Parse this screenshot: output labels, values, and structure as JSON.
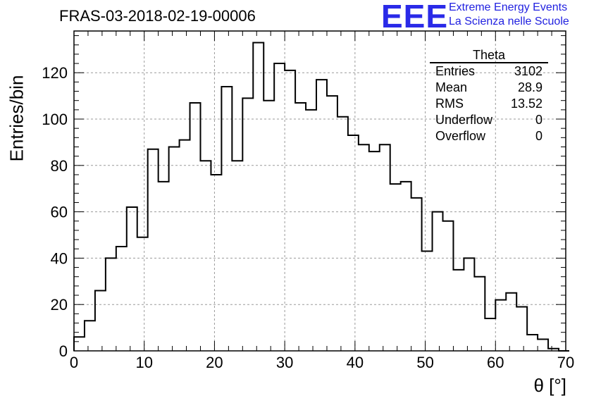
{
  "header": {
    "title": "FRAS-03-2018-02-19-00006",
    "logo_text": "EEE",
    "logo_line1": "Extreme Energy Events",
    "logo_line2": "La Scienza nelle Scuole"
  },
  "stats_box": {
    "title": "Theta",
    "rows": [
      {
        "label": "Entries",
        "value": "3102"
      },
      {
        "label": "Mean",
        "value": "28.9"
      },
      {
        "label": "RMS",
        "value": "13.52"
      },
      {
        "label": "Underflow",
        "value": "0"
      },
      {
        "label": "Overflow",
        "value": "0"
      }
    ]
  },
  "chart_data": {
    "type": "bar",
    "histogram": true,
    "xlabel": "θ [°]",
    "ylabel": "Entries/bin",
    "xlim": [
      0,
      70
    ],
    "ylim": [
      0,
      138
    ],
    "x_ticks": [
      0,
      10,
      20,
      30,
      40,
      50,
      60,
      70
    ],
    "y_ticks": [
      0,
      20,
      40,
      60,
      80,
      100,
      120
    ],
    "grid": true,
    "bin_width": 1.5,
    "bin_edges_start": 0,
    "values": [
      6,
      13,
      26,
      40,
      45,
      62,
      49,
      87,
      73,
      88,
      91,
      107,
      82,
      76,
      114,
      82,
      109,
      133,
      108,
      124,
      121,
      107,
      104,
      117,
      110,
      101,
      93,
      89,
      86,
      89,
      72,
      73,
      66,
      43,
      60,
      56,
      35,
      40,
      32,
      14,
      22,
      25,
      19,
      7,
      5,
      1,
      0
    ]
  }
}
